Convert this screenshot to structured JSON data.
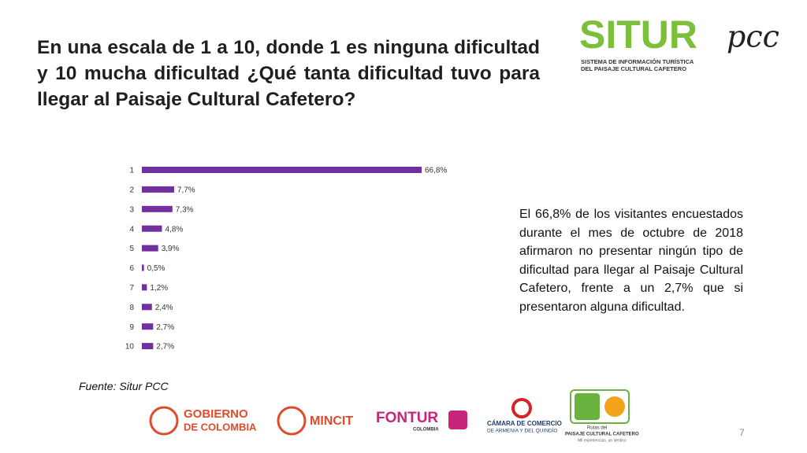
{
  "chart_data": {
    "type": "bar",
    "orientation": "horizontal",
    "categories": [
      "1",
      "2",
      "3",
      "4",
      "5",
      "6",
      "7",
      "8",
      "9",
      "10"
    ],
    "values": [
      66.8,
      7.7,
      7.3,
      4.8,
      3.9,
      0.5,
      1.2,
      2.4,
      2.7,
      2.7
    ],
    "value_labels": [
      "66,8%",
      "7,7%",
      "7,3%",
      "4,8%",
      "3,9%",
      "0,5%",
      "1,2%",
      "2,4%",
      "2,7%",
      "2,7%"
    ],
    "color": "#7030a0"
  },
  "slide": {
    "title": "En una escala de 1 a 10, donde 1 es ninguna dificultad y 10 mucha dificultad ¿Qué tanta dificultad tuvo para llegar al Paisaje Cultural Cafetero?",
    "body": "El 66,8% de los visitantes encuestados durante el mes de octubre de 2018 afirmaron no presentar ningún tipo de dificultad para llegar al Paisaje Cultural Cafetero, frente  a un 2,7% que si presentaron alguna dificultad.",
    "source": "Fuente: Situr PCC",
    "page_number": "7",
    "logo_situr": {
      "name": "SITUR",
      "suffix": "pcc",
      "line1": "SISTEMA DE INFORMACIÓN TURÍSTICA",
      "line2": "DEL PAISAJE CULTURAL CAFETERO"
    },
    "logos": {
      "gobierno_1": "GOBIERNO",
      "gobierno_2": "DE COLOMBIA",
      "mincit": "MINCIT",
      "fontur": "FONTUR",
      "fontur_sub": "COLOMBIA",
      "camara_1": "CÁMARA DE COMERCIO",
      "camara_2": "DE ARMENIA Y DEL QUINDÍO",
      "rutas_1": "Rutas del",
      "rutas_2": "PAISAJE CULTURAL CAFETERO",
      "rutas_3": "Mil experiencias, un destino"
    }
  }
}
